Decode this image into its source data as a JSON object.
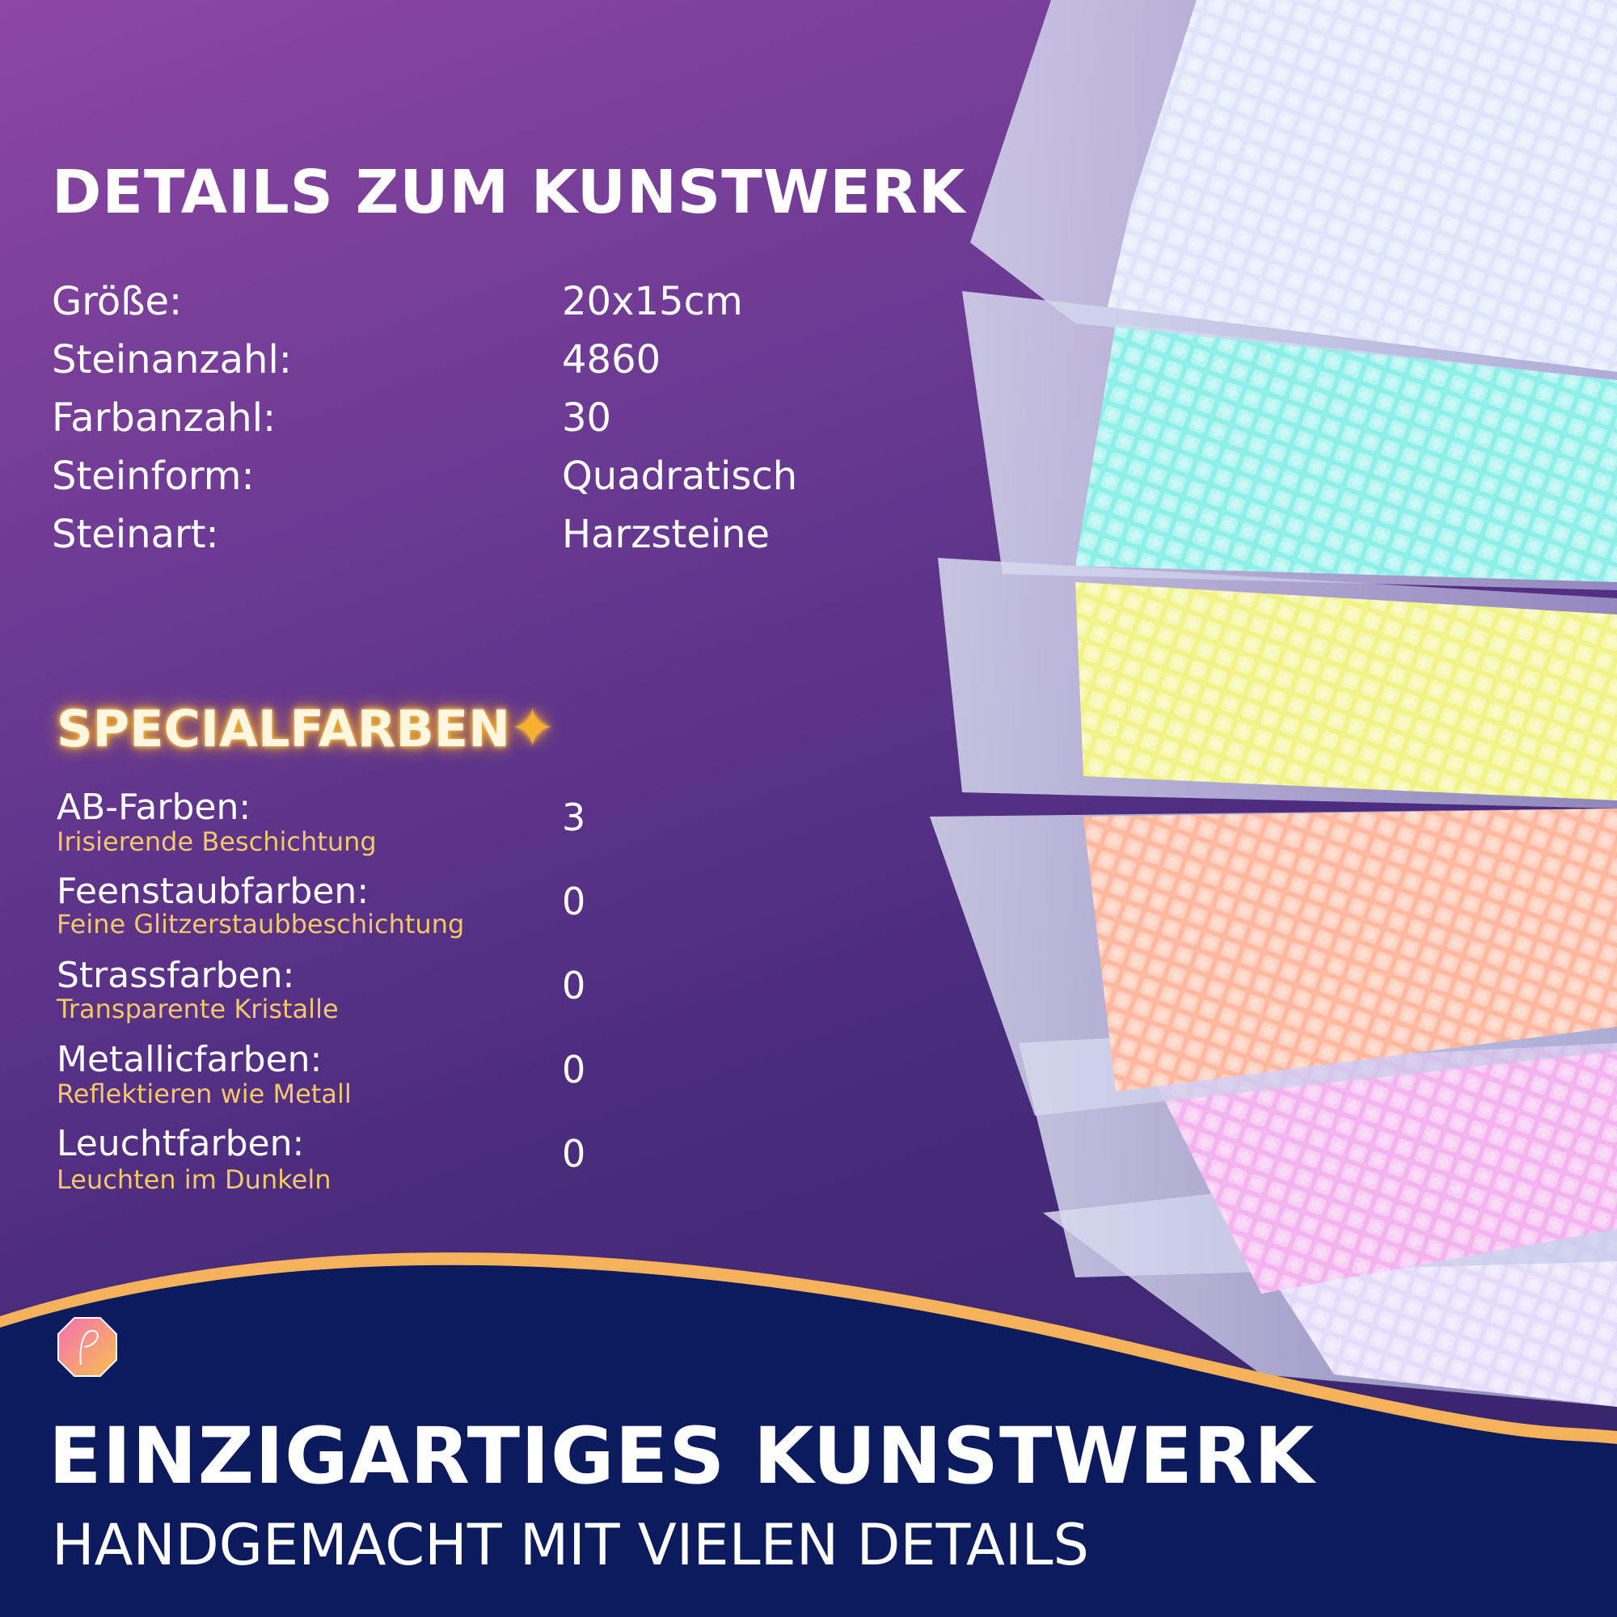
{
  "details": {
    "title": "DETAILS ZUM KUNSTWERK",
    "rows": [
      {
        "label": "Größe:",
        "value": "20x15cm"
      },
      {
        "label": "Steinanzahl:",
        "value": "4860"
      },
      {
        "label": "Farbanzahl:",
        "value": "30"
      },
      {
        "label": "Steinform:",
        "value": "Quadratisch"
      },
      {
        "label": "Steinart:",
        "value": "Harzsteine"
      }
    ]
  },
  "special": {
    "title": "SPECIALFARBEN",
    "sparkle_icon": "sparkles-icon",
    "rows": [
      {
        "label": "AB-Farben:",
        "sub": "Irisierende Beschichtung",
        "value": "3"
      },
      {
        "label": "Feenstaubfarben:",
        "sub": "Feine Glitzerstaubbeschichtung",
        "value": "0"
      },
      {
        "label": "Strassfarben:",
        "sub": "Transparente Kristalle",
        "value": "0"
      },
      {
        "label": "Metallicfarben:",
        "sub": "Reflektieren wie Metall",
        "value": "0"
      },
      {
        "label": "Leuchtfarben:",
        "sub": "Leuchten im Dunkeln",
        "value": "0"
      }
    ]
  },
  "banner": {
    "headline": "EINZIGARTIGES KUNSTWERK",
    "subline": "HANDGEMACHT MIT VIELEN DETAILS"
  },
  "colors": {
    "accent_gold": "#f3c76a",
    "banner_navy": "#0c1a5e",
    "wave_orange": "#f6b25a",
    "bead_colors": [
      "#dfe6fb",
      "#8ff0ea",
      "#f2f48a",
      "#ffb9a0",
      "#f4b4ef",
      "#e4dcfb"
    ]
  }
}
